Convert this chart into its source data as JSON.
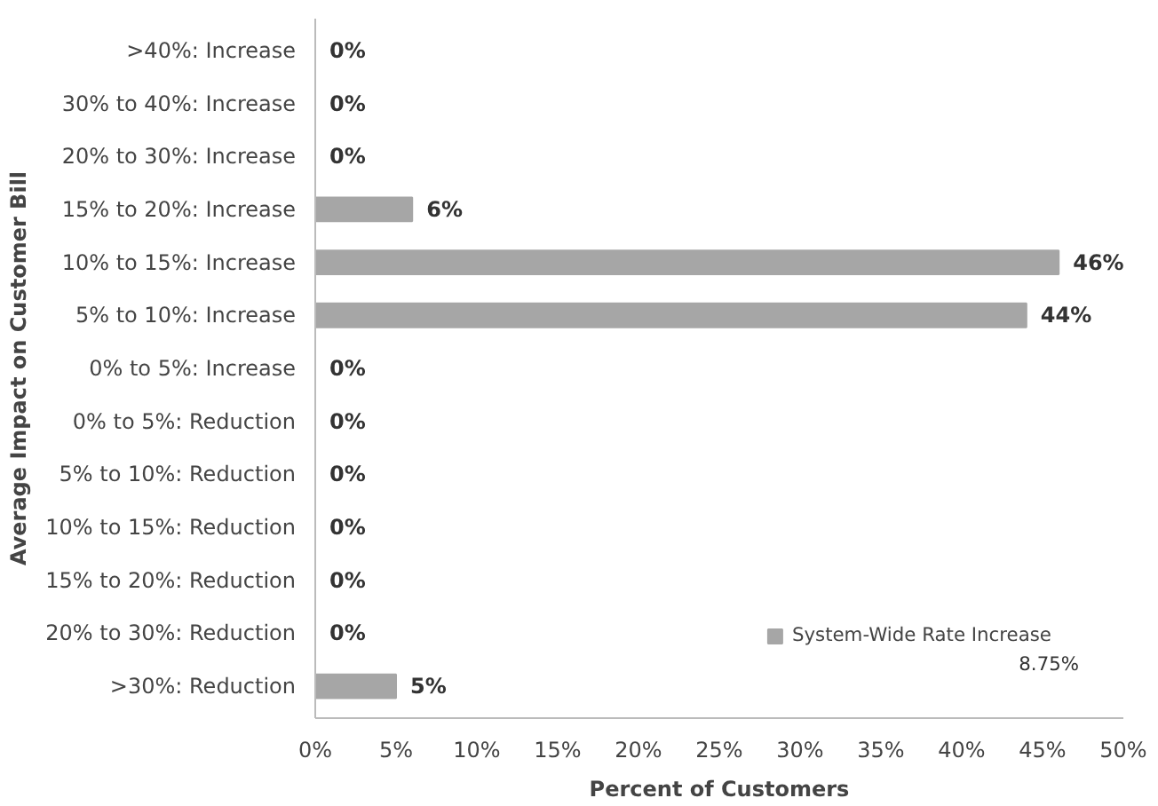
{
  "chart_data": {
    "type": "bar",
    "orientation": "horizontal",
    "xlabel": "Percent of Customers",
    "ylabel": "Average Impact on Customer Bill",
    "categories": [
      ">40%: Increase",
      "30% to 40%: Increase",
      "20% to 30%: Increase",
      "15% to 20%: Increase",
      "10% to 15%: Increase",
      "5% to 10%: Increase",
      "0% to 5%: Increase",
      "0% to 5%: Reduction",
      "5% to 10%: Reduction",
      "10% to 15%: Reduction",
      "15% to 20%: Reduction",
      "20% to 30%: Reduction",
      ">30%: Reduction"
    ],
    "series": [
      {
        "name": "System-Wide Rate Increase",
        "color": "#a6a6a6",
        "values": [
          0,
          0,
          0,
          6,
          46,
          44,
          0,
          0,
          0,
          0,
          0,
          0,
          5
        ],
        "value_labels": [
          "0%",
          "0%",
          "0%",
          "6%",
          "46%",
          "44%",
          "0%",
          "0%",
          "0%",
          "0%",
          "0%",
          "0%",
          "5%"
        ]
      }
    ],
    "xlim": [
      0,
      50
    ],
    "xticks": [
      {
        "value": 0,
        "label": "0%"
      },
      {
        "value": 5,
        "label": "5%"
      },
      {
        "value": 10,
        "label": "10%"
      },
      {
        "value": 15,
        "label": "15%"
      },
      {
        "value": 20,
        "label": "20%"
      },
      {
        "value": 25,
        "label": "25%"
      },
      {
        "value": 30,
        "label": "30%"
      },
      {
        "value": 35,
        "label": "35%"
      },
      {
        "value": 40,
        "label": "40%"
      },
      {
        "value": 45,
        "label": "45%"
      },
      {
        "value": 50,
        "label": "50%"
      }
    ],
    "annotations": [
      "8.75%"
    ],
    "legend": "bottom right",
    "grid": false
  }
}
